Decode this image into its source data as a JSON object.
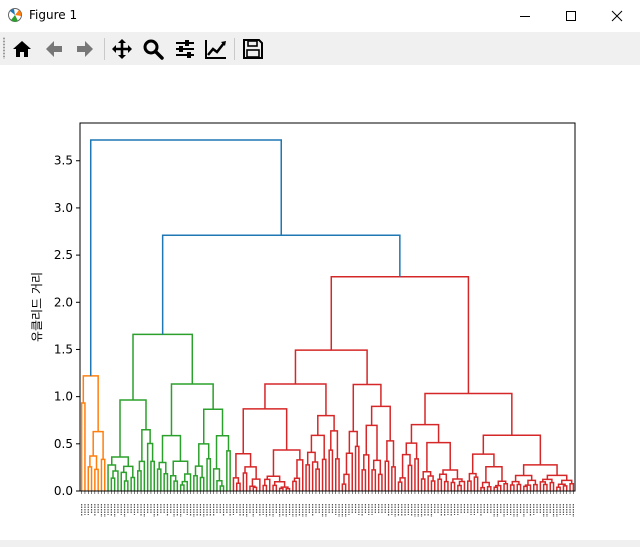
{
  "window": {
    "title": "Figure 1",
    "icon": "matplotlib-icon",
    "controls": [
      "minimize-icon",
      "maximize-icon",
      "close-icon"
    ]
  },
  "toolbar": {
    "tools": [
      {
        "name": "home-icon"
      },
      {
        "name": "back-arrow-icon"
      },
      {
        "name": "forward-arrow-icon"
      },
      {
        "name": "pan-icon"
      },
      {
        "name": "zoom-icon"
      },
      {
        "name": "subplots-config-icon"
      },
      {
        "name": "edit-axis-icon"
      },
      {
        "name": "save-icon"
      }
    ]
  },
  "chart_data": {
    "type": "dendrogram",
    "ylabel": "유클리드 거리",
    "ylim": [
      0,
      3.9
    ],
    "yticks": [
      "0.0",
      "0.5",
      "1.0",
      "1.5",
      "2.0",
      "2.5",
      "3.0",
      "3.5"
    ],
    "ytick_values": [
      0,
      0.5,
      1.0,
      1.5,
      2.0,
      2.5,
      3.0,
      3.5
    ],
    "leaf_count": 150,
    "colors": {
      "orange": "#ff7f0e",
      "green": "#2ca02c",
      "red": "#d62728",
      "blue": "#1f77b4"
    },
    "clusters": [
      {
        "color": "orange",
        "leaf_range": [
          0,
          8
        ],
        "merge_height": 1.22
      },
      {
        "color": "green",
        "leaf_range": [
          8,
          46
        ],
        "merge_height": 1.66
      },
      {
        "color": "red",
        "leaf_range": [
          46,
          150
        ],
        "merge_height": 2.27
      }
    ],
    "top_links": [
      {
        "color": "blue",
        "height": 2.71,
        "joins": [
          "green",
          "red"
        ]
      },
      {
        "color": "blue",
        "height": 3.72,
        "joins": [
          "orange",
          "green+red"
        ]
      }
    ]
  }
}
